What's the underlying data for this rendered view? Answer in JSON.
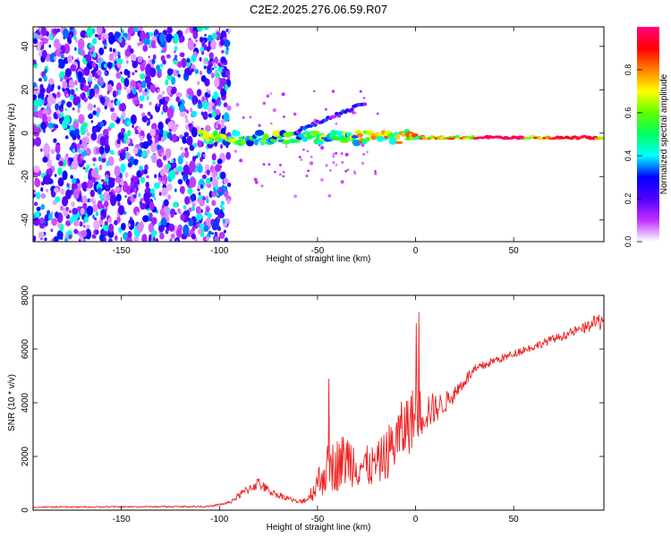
{
  "title": "C2E2.2025.276.06.59.R07",
  "chart_data": [
    {
      "type": "heatmap",
      "name": "spectrogram",
      "xlabel": "Height of straight line (km)",
      "ylabel": "Frequency (Hz)",
      "xlim": [
        -195,
        96
      ],
      "ylim": [
        -50,
        49
      ],
      "xticks": [
        -150,
        -100,
        -50,
        0,
        50
      ],
      "yticks": [
        -40,
        -20,
        0,
        20,
        40
      ],
      "colorbar": {
        "label": "Normalized spectral amplitude",
        "range": [
          0,
          1
        ],
        "ticks": [
          0,
          0.2,
          0.4,
          0.6,
          0.8
        ],
        "tick_labels": [
          "0.0",
          "0.2",
          "0.4",
          "0.6",
          "0.8"
        ],
        "colors": [
          "#ffffff",
          "#c030ff",
          "#5000ff",
          "#0000ff",
          "#00ffff",
          "#00ff60",
          "#60ff00",
          "#ffff00",
          "#ff8000",
          "#ff0000",
          "#ff0080"
        ]
      },
      "features": {
        "noise_region_x": [
          -195,
          -95
        ],
        "main_line_x": [
          -110,
          96
        ],
        "main_line_freq": -2,
        "upper_branch": {
          "x": [
            -60,
            -25
          ],
          "freq_start": 1,
          "freq_end": 14
        },
        "peak_amplitude_x": [
          30,
          55
        ]
      }
    },
    {
      "type": "line",
      "name": "snr",
      "xlabel": "Height of straight line (km)",
      "ylabel": "SNR (10 * v/v)",
      "xlim": [
        -195,
        96
      ],
      "ylim": [
        0,
        8000
      ],
      "xticks": [
        -150,
        -100,
        -50,
        0,
        50
      ],
      "yticks": [
        0,
        2000,
        4000,
        6000,
        8000
      ],
      "color": "#ee2222",
      "envelope": {
        "x": [
          -195,
          -105,
          -95,
          -85,
          -80,
          -75,
          -70,
          -65,
          -60,
          -55,
          -50,
          -45,
          -40,
          -35,
          -30,
          -25,
          -20,
          -15,
          -10,
          -5,
          0,
          5,
          10,
          15,
          20,
          25,
          30,
          35,
          40,
          45,
          50,
          55,
          60,
          65,
          70,
          75,
          80,
          85,
          90,
          96
        ],
        "base": [
          100,
          120,
          250,
          700,
          900,
          650,
          500,
          400,
          250,
          350,
          700,
          1100,
          1200,
          1400,
          1300,
          1200,
          1300,
          1600,
          2000,
          2500,
          3000,
          3300,
          3500,
          3800,
          4200,
          4700,
          5100,
          5300,
          5500,
          5600,
          5750,
          5900,
          6000,
          6150,
          6300,
          6400,
          6550,
          6650,
          6800,
          6900
        ],
        "spread": [
          50,
          60,
          120,
          400,
          450,
          300,
          250,
          200,
          150,
          300,
          1200,
          1800,
          2000,
          2100,
          1800,
          1600,
          1500,
          1900,
          2300,
          2400,
          2200,
          1600,
          1100,
          800,
          600,
          500,
          400,
          350,
          300,
          300,
          300,
          300,
          300,
          300,
          300,
          300,
          350,
          400,
          500,
          800
        ]
      }
    }
  ]
}
